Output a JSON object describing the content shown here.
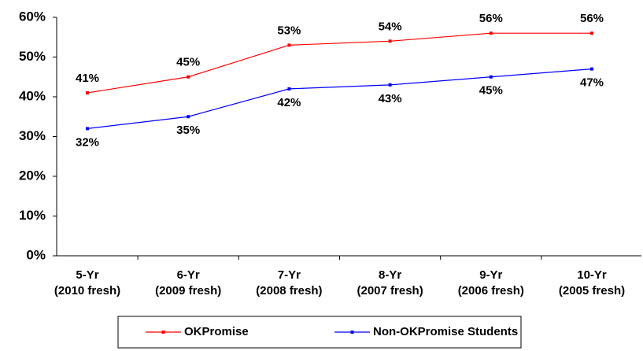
{
  "chart_data": {
    "type": "line",
    "categories": [
      [
        "5-Yr",
        "(2010 fresh)"
      ],
      [
        "6-Yr",
        "(2009 fresh)"
      ],
      [
        "7-Yr",
        "(2008 fresh)"
      ],
      [
        "8-Yr",
        "(2007 fresh)"
      ],
      [
        "9-Yr",
        "(2006 fresh)"
      ],
      [
        "10-Yr",
        "(2005 fresh)"
      ]
    ],
    "series": [
      {
        "name": "OKPromise",
        "color": "#ff0000",
        "values": [
          41,
          45,
          53,
          54,
          56,
          56
        ],
        "value_labels": [
          "41%",
          "45%",
          "53%",
          "54%",
          "56%",
          "56%"
        ],
        "label_position": "above"
      },
      {
        "name": "Non-OKPromise Students",
        "color": "#0000ff",
        "values": [
          32,
          35,
          42,
          43,
          45,
          47
        ],
        "value_labels": [
          "32%",
          "35%",
          "42%",
          "43%",
          "45%",
          "47%"
        ],
        "label_position": "below"
      }
    ],
    "ylim": [
      0,
      60
    ],
    "yticks": [
      {
        "value": 0,
        "label": "0%"
      },
      {
        "value": 10,
        "label": "10%"
      },
      {
        "value": 20,
        "label": "20%"
      },
      {
        "value": 30,
        "label": "30%"
      },
      {
        "value": 40,
        "label": "40%"
      },
      {
        "value": 50,
        "label": "50%"
      },
      {
        "value": 60,
        "label": "60%"
      }
    ],
    "legend": "bottom"
  }
}
